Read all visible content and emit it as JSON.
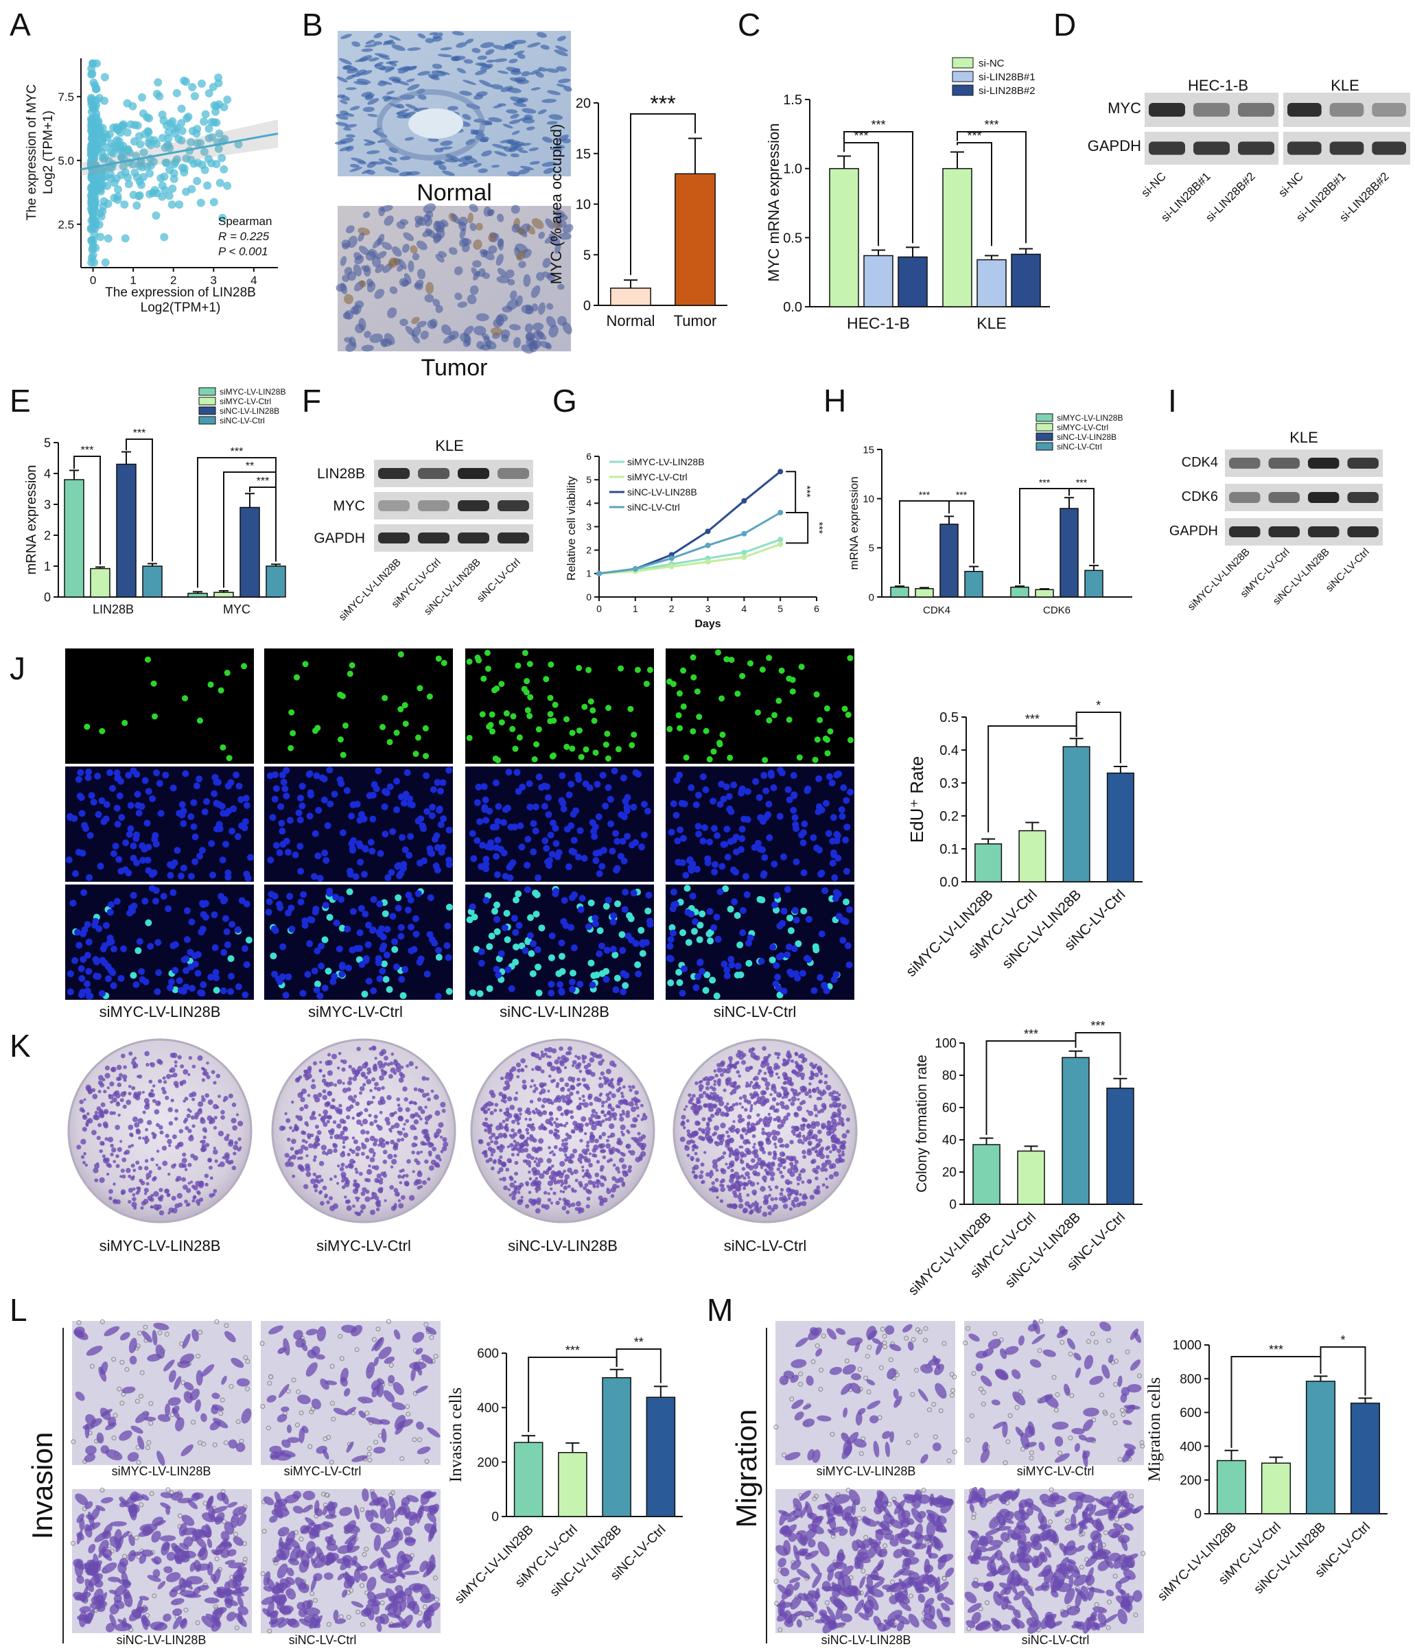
{
  "colors": {
    "teal_light": "#7dd3b0",
    "green_light": "#c6f3b0",
    "teal_mid": "#4a9ab0",
    "navy": "#2a5a98",
    "navy_dark": "#2d4f8c",
    "scatter": "#54bcd6",
    "normal_bar": "#fde0cc",
    "tumor_bar": "#c85a16",
    "edu_green": "#2bd62b",
    "dapi_blue": "#1a2bd6",
    "crystal_violet": "#6b4bb0"
  },
  "panels": {
    "A": {
      "letter": "A",
      "stats_title": "Spearman",
      "stats_r": "R = 0.225",
      "stats_p": "P < 0.001",
      "ylabel_line1": "The expression of MYC",
      "ylabel_line2": "Log2 (TPM+1)",
      "xlabel_line1": "The expression of LIN28B",
      "xlabel_line2": "Log2(TPM+1)"
    },
    "B": {
      "letter": "B",
      "img1_label": "Normal",
      "img2_label": "Tumor",
      "sig": "***"
    },
    "C": {
      "letter": "C"
    },
    "D": {
      "letter": "D",
      "group1": "HEC-1-B",
      "group2": "KLE",
      "row1": "MYC",
      "row2": "GAPDH",
      "lanes": [
        "si-NC",
        "si-LIN28B#1",
        "si-LIN28B#2",
        "si-NC",
        "si-LIN28B#1",
        "si-LIN28B#2"
      ]
    },
    "E": {
      "letter": "E"
    },
    "F": {
      "letter": "F",
      "title": "KLE",
      "rows": [
        "LIN28B",
        "MYC",
        "GAPDH"
      ],
      "lanes": [
        "siMYC-LV-LIN28B",
        "siMYC-LV-Ctrl",
        "siNC-LV-LIN28B",
        "siNC-LV-Ctrl"
      ]
    },
    "G": {
      "letter": "G"
    },
    "H": {
      "letter": "H"
    },
    "I": {
      "letter": "I",
      "title": "KLE",
      "rows": [
        "CDK4",
        "CDK6",
        "GAPDH"
      ],
      "lanes": [
        "siMYC-LV-LIN28B",
        "siMYC-LV-Ctrl",
        "siNC-LV-LIN28B",
        "siNC-LV-Ctrl"
      ]
    },
    "J": {
      "letter": "J",
      "captions": [
        "siMYC-LV-LIN28B",
        "siMYC-LV-Ctrl",
        "siNC-LV-LIN28B",
        "siNC-LV-Ctrl"
      ]
    },
    "K": {
      "letter": "K",
      "captions": [
        "siMYC-LV-LIN28B",
        "siMYC-LV-Ctrl",
        "siNC-LV-LIN28B",
        "siNC-LV-Ctrl"
      ]
    },
    "L": {
      "letter": "L",
      "side_label": "Invasion",
      "captions": [
        "siMYC-LV-LIN28B",
        "siMYC-LV-Ctrl",
        "siNC-LV-LIN28B",
        "siNC-LV-Ctrl"
      ]
    },
    "M": {
      "letter": "M",
      "side_label": "Migration",
      "captions": [
        "siMYC-LV-LIN28B",
        "siMYC-LV-Ctrl",
        "siNC-LV-LIN28B",
        "siNC-LV-Ctrl"
      ]
    }
  },
  "chart_data": [
    {
      "id": "A",
      "type": "scatter",
      "xlabel": "The expression of LIN28B Log2(TPM+1)",
      "ylabel": "The expression of MYC Log2 (TPM+1)",
      "xlim": [
        -0.3,
        4.6
      ],
      "ylim": [
        0.8,
        9.0
      ],
      "xticks": [
        0,
        1,
        2,
        3,
        4
      ],
      "yticks": [
        2.5,
        5.0,
        7.5
      ],
      "regression": {
        "x": [
          -0.3,
          4.6
        ],
        "y": [
          4.65,
          6.05
        ]
      },
      "stats": {
        "method": "Spearman",
        "R": 0.225,
        "P": "< 0.001"
      }
    },
    {
      "id": "B",
      "type": "bar",
      "categories": [
        "Normal",
        "Tumor"
      ],
      "values": [
        1.7,
        13.0
      ],
      "errors": [
        0.8,
        3.5
      ],
      "ylabel": "MYC (% area occupied)",
      "ylim": [
        0,
        20
      ],
      "yticks": [
        0,
        5,
        10,
        15,
        20
      ]
    },
    {
      "id": "C",
      "type": "bar",
      "categories": [
        "HEC-1-B",
        "KLE"
      ],
      "series": [
        {
          "name": "si-NC",
          "values": [
            1.0,
            1.0
          ],
          "errors": [
            0.09,
            0.12
          ]
        },
        {
          "name": "si-LIN28B#1",
          "values": [
            0.37,
            0.34
          ],
          "errors": [
            0.04,
            0.03
          ]
        },
        {
          "name": "si-LIN28B#2",
          "values": [
            0.36,
            0.38
          ],
          "errors": [
            0.07,
            0.04
          ]
        }
      ],
      "ylabel": "MYC mRNA expression",
      "ylim": [
        0,
        1.5
      ],
      "yticks": [
        "0.0",
        "0.5",
        "1.0",
        "1.5"
      ],
      "annotations": [
        "***",
        "***",
        "***",
        "***"
      ]
    },
    {
      "id": "E",
      "type": "bar",
      "categories": [
        "LIN28B",
        "MYC"
      ],
      "series": [
        {
          "name": "siMYC-LV-LIN28B",
          "values": [
            3.8,
            0.12
          ],
          "errors": [
            0.3,
            0.05
          ]
        },
        {
          "name": "siMYC-LV-Ctrl",
          "values": [
            0.92,
            0.15
          ],
          "errors": [
            0.05,
            0.05
          ]
        },
        {
          "name": "siNC-LV-LIN28B",
          "values": [
            4.3,
            2.9
          ],
          "errors": [
            0.4,
            0.45
          ]
        },
        {
          "name": "siNC-LV-Ctrl",
          "values": [
            1.0,
            1.0
          ],
          "errors": [
            0.08,
            0.06
          ]
        }
      ],
      "ylabel": "mRNA expression",
      "ylim": [
        0,
        5
      ],
      "yticks": [
        0,
        1,
        2,
        3,
        4,
        5
      ],
      "annotations": [
        "***",
        "***",
        "***",
        "**",
        "***"
      ]
    },
    {
      "id": "G",
      "type": "line",
      "x": [
        0,
        1,
        2,
        3,
        4,
        5
      ],
      "series": [
        {
          "name": "siMYC-LV-LIN28B",
          "values": [
            1.0,
            1.15,
            1.4,
            1.65,
            1.9,
            2.45
          ]
        },
        {
          "name": "siMYC-LV-Ctrl",
          "values": [
            1.0,
            1.1,
            1.3,
            1.5,
            1.7,
            2.25
          ]
        },
        {
          "name": "siNC-LV-LIN28B",
          "values": [
            1.0,
            1.2,
            1.8,
            2.8,
            4.1,
            5.35
          ]
        },
        {
          "name": "siNC-LV-Ctrl",
          "values": [
            1.0,
            1.2,
            1.65,
            2.2,
            2.7,
            3.6
          ]
        }
      ],
      "xlabel": "Days",
      "ylabel": "Relative cell viability",
      "xlim": [
        0,
        6
      ],
      "ylim": [
        0,
        6
      ],
      "xticks": [
        0,
        1,
        2,
        3,
        4,
        5,
        6
      ],
      "yticks": [
        0,
        1,
        2,
        3,
        4,
        5,
        6
      ],
      "annotations": [
        "***",
        "***"
      ]
    },
    {
      "id": "H",
      "type": "bar",
      "categories": [
        "CDK4",
        "CDK6"
      ],
      "series": [
        {
          "name": "siMYC-LV-LIN28B",
          "values": [
            1.0,
            1.0
          ],
          "errors": [
            0.1,
            0.1
          ]
        },
        {
          "name": "siMYC-LV-Ctrl",
          "values": [
            0.85,
            0.75
          ],
          "errors": [
            0.1,
            0.08
          ]
        },
        {
          "name": "siNC-LV-LIN28B",
          "values": [
            7.4,
            9.0
          ],
          "errors": [
            0.8,
            1.1
          ]
        },
        {
          "name": "siNC-LV-Ctrl",
          "values": [
            2.6,
            2.7
          ],
          "errors": [
            0.5,
            0.5
          ]
        }
      ],
      "ylabel": "mRNA expression",
      "ylim": [
        0,
        15
      ],
      "yticks": [
        0,
        5,
        10,
        15
      ],
      "annotations": [
        "***",
        "***",
        "***",
        "***"
      ]
    },
    {
      "id": "J",
      "type": "bar",
      "categories": [
        "siMYC-LV-LIN28B",
        "siMYC-LV-Ctrl",
        "siNC-LV-LIN28B",
        "siNC-LV-Ctrl"
      ],
      "values": [
        0.115,
        0.155,
        0.41,
        0.33
      ],
      "errors": [
        0.015,
        0.025,
        0.025,
        0.02
      ],
      "ylabel": "EdU⁺ Rate",
      "ylim": [
        0,
        0.5
      ],
      "yticks": [
        "0.0",
        "0.1",
        "0.2",
        "0.3",
        "0.4",
        "0.5"
      ],
      "annotations": [
        "***",
        "*"
      ]
    },
    {
      "id": "K",
      "type": "bar",
      "categories": [
        "siMYC-LV-LIN28B",
        "siMYC-LV-Ctrl",
        "siNC-LV-LIN28B",
        "siNC-LV-Ctrl"
      ],
      "values": [
        37,
        33,
        91,
        72
      ],
      "errors": [
        4,
        3,
        4,
        6
      ],
      "ylabel": "Colony formation rate",
      "ylim": [
        0,
        100
      ],
      "yticks": [
        0,
        20,
        40,
        60,
        80,
        100
      ],
      "annotations": [
        "***",
        "***"
      ]
    },
    {
      "id": "L",
      "type": "bar",
      "categories": [
        "siMYC-LV-LIN28B",
        "siMYC-LV-Ctrl",
        "siNC-LV-LIN28B",
        "siNC-LV-Ctrl"
      ],
      "values": [
        272,
        235,
        510,
        438
      ],
      "errors": [
        25,
        35,
        30,
        40
      ],
      "ylabel": "Invasion cells",
      "ylim": [
        0,
        600
      ],
      "yticks": [
        0,
        200,
        400,
        600
      ],
      "annotations": [
        "***",
        "**"
      ]
    },
    {
      "id": "M",
      "type": "bar",
      "categories": [
        "siMYC-LV-LIN28B",
        "siMYC-LV-Ctrl",
        "siNC-LV-LIN28B",
        "siNC-LV-Ctrl"
      ],
      "values": [
        315,
        300,
        785,
        655
      ],
      "errors": [
        60,
        35,
        30,
        30
      ],
      "ylabel": "Migration cells",
      "ylim": [
        0,
        1000
      ],
      "yticks": [
        0,
        200,
        400,
        600,
        800,
        1000
      ],
      "annotations": [
        "***",
        "*"
      ]
    }
  ]
}
